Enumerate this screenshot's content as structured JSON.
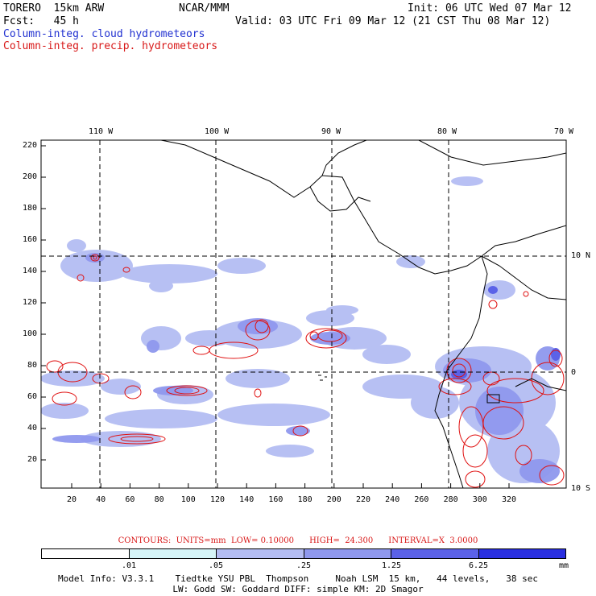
{
  "header": {
    "model": "TORERO  15km ARW",
    "center": "NCAR/MMM",
    "init": "Init: 06 UTC Wed 07 Mar 12",
    "fcst": "Fcst:   45 h",
    "valid": "Valid: 03 UTC Fri 09 Mar 12 (21 CST Thu 08 Mar 12)",
    "field1": "Column-integ. cloud hydrometeors",
    "field2": "Column-integ. precip. hydrometeors"
  },
  "axes": {
    "lon_labels": [
      "110 W",
      "100 W",
      "90 W",
      "80 W",
      "70 W"
    ],
    "lat_labels": [
      "10 N",
      "0",
      "10 S"
    ],
    "x_ticks": [
      "20",
      "40",
      "60",
      "80",
      "100",
      "120",
      "140",
      "160",
      "180",
      "200",
      "220",
      "240",
      "260",
      "280",
      "300",
      "320"
    ],
    "y_ticks": [
      "220",
      "200",
      "180",
      "160",
      "140",
      "120",
      "100",
      "80",
      "60",
      "40",
      "20"
    ]
  },
  "contours_line": "CONTOURS:  UNITS=mm  LOW= 0.10000      HIGH=  24.300      INTERVAL=X  3.0000",
  "colorbar": {
    "labels": [
      ".01",
      ".05",
      ".25",
      "1.25",
      "6.25"
    ],
    "unit": "mm",
    "colors": [
      "#ffffff",
      "#d6f5f8",
      "#b4bdf3",
      "#8f98ee",
      "#5b62e8",
      "#2a2fe0"
    ]
  },
  "model_info": {
    "line1": "Model Info: V3.3.1    Tiedtke YSU PBL  Thompson     Noah LSM  15 km,   44 levels,   38 sec",
    "line2": "LW: Godd SW: Goddard DIFF: simple KM: 2D Smagor"
  },
  "colors": {
    "cloud_light": "#b4bdf3",
    "cloud_mid": "#8f98ee",
    "cloud_dark": "#5b62e8",
    "precip_contour": "#e01010"
  }
}
